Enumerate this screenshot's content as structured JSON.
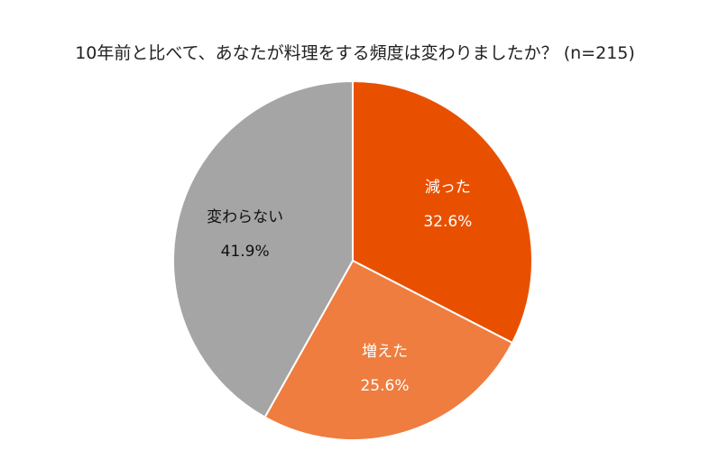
{
  "chart_data": {
    "type": "pie",
    "title": "10年前と比べて、あなたが料理をする頻度は変わりましたか？ (n=215)",
    "slices": [
      {
        "label": "減った",
        "value": 32.6,
        "value_label": "32.6%",
        "color": "#E85000",
        "text_color": "#ffffff"
      },
      {
        "label": "増えた",
        "value": 25.6,
        "value_label": "25.6%",
        "color": "#EE7D3F",
        "text_color": "#ffffff"
      },
      {
        "label": "変わらない",
        "value": 41.9,
        "value_label": "41.9%",
        "color": "#A5A5A5",
        "text_color": "#111111"
      }
    ],
    "start_angle_deg": 0,
    "direction": "clockwise",
    "legend": "none"
  }
}
